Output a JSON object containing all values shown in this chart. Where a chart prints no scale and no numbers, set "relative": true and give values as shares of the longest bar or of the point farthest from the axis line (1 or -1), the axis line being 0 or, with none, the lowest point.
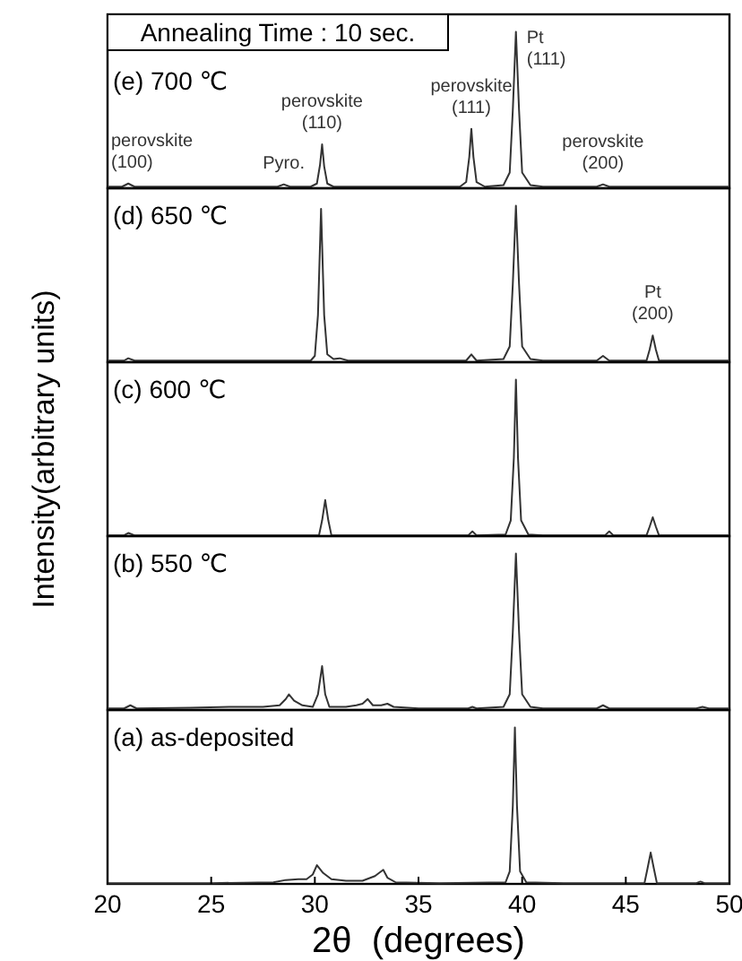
{
  "chart_data": [
    {
      "type": "line",
      "title": "(e) 700 ℃",
      "relative": true,
      "xlim": [
        20,
        50
      ],
      "tick_labels": false,
      "annotations": [
        "Annealing Time : 10 sec.",
        {
          "text": "perovskite\n(100)",
          "x": 21.0,
          "y": 0.03
        },
        {
          "text": "Pyro.",
          "x": 28.5,
          "y": 0.025
        },
        {
          "text": "perovskite\n(110)",
          "x": 30.35,
          "y": 0.28
        },
        {
          "text": "perovskite\n(111)",
          "x": 37.55,
          "y": 0.38
        },
        {
          "text": "Pt\n(111)",
          "x": 39.7,
          "y": 1
        },
        {
          "text": "perovskite\n(200)",
          "x": 43.9,
          "y": 0.025
        }
      ],
      "series": [
        {
          "color": "#333333",
          "x": [
            20,
            20.7,
            21.0,
            21.3,
            23,
            25,
            27,
            28.2,
            28.5,
            28.8,
            29.8,
            30.1,
            30.25,
            30.35,
            30.45,
            30.6,
            30.9,
            33,
            35,
            37.0,
            37.3,
            37.45,
            37.55,
            37.65,
            37.8,
            38.2,
            39.1,
            39.4,
            39.55,
            39.7,
            39.85,
            40.0,
            40.4,
            41,
            43.6,
            43.9,
            44.2,
            46,
            48,
            50
          ],
          "values": [
            0.01,
            0.01,
            0.03,
            0.01,
            0.01,
            0.01,
            0.01,
            0.01,
            0.025,
            0.01,
            0.01,
            0.03,
            0.15,
            0.28,
            0.14,
            0.03,
            0.01,
            0.01,
            0.01,
            0.01,
            0.04,
            0.2,
            0.38,
            0.2,
            0.04,
            0.01,
            0.02,
            0.1,
            0.5,
            1,
            0.5,
            0.1,
            0.02,
            0.01,
            0.01,
            0.025,
            0.01,
            0.01,
            0.01,
            0.01
          ]
        }
      ]
    },
    {
      "type": "line",
      "title": "(d) 650 ℃",
      "relative": true,
      "xlim": [
        20,
        50
      ],
      "tick_labels": false,
      "annotations": [
        {
          "text": "Pt\n(200)",
          "x": 46.3,
          "y": 0.17
        }
      ],
      "series": [
        {
          "color": "#333333",
          "x": [
            20,
            20.8,
            21.0,
            21.3,
            26,
            28.5,
            29.8,
            30.0,
            30.15,
            30.3,
            30.45,
            30.6,
            30.9,
            31.2,
            31.6,
            35,
            37.3,
            37.55,
            37.8,
            39.1,
            39.4,
            39.55,
            39.7,
            39.85,
            40.0,
            40.4,
            41,
            43.6,
            43.9,
            44.2,
            46.0,
            46.15,
            46.3,
            46.45,
            46.6,
            48,
            50
          ],
          "values": [
            0.01,
            0.01,
            0.025,
            0.01,
            0.01,
            0.01,
            0.01,
            0.04,
            0.3,
            0.98,
            0.3,
            0.05,
            0.02,
            0.025,
            0.01,
            0.01,
            0.01,
            0.05,
            0.01,
            0.02,
            0.1,
            0.5,
            1,
            0.5,
            0.1,
            0.02,
            0.01,
            0.01,
            0.04,
            0.01,
            0.01,
            0.08,
            0.17,
            0.08,
            0.01,
            0.01,
            0.01
          ]
        }
      ]
    },
    {
      "type": "line",
      "title": "(c) 600 ℃",
      "relative": true,
      "xlim": [
        20,
        50
      ],
      "tick_labels": false,
      "ylabel": "Intensity(arbitrary units)",
      "series": [
        {
          "color": "#333333",
          "x": [
            20,
            20.8,
            21.0,
            21.3,
            28,
            30.2,
            30.35,
            30.5,
            30.65,
            30.8,
            35,
            37.4,
            37.6,
            37.8,
            39.2,
            39.45,
            39.6,
            39.7,
            39.8,
            39.95,
            40.3,
            41,
            44.0,
            44.2,
            44.4,
            46.0,
            46.15,
            46.3,
            46.45,
            46.6,
            50
          ],
          "values": [
            0.005,
            0.005,
            0.02,
            0.005,
            0.005,
            0.005,
            0.1,
            0.23,
            0.1,
            0.005,
            0.005,
            0.005,
            0.03,
            0.005,
            0.01,
            0.1,
            0.5,
            1,
            0.5,
            0.1,
            0.01,
            0.005,
            0.005,
            0.03,
            0.005,
            0.005,
            0.06,
            0.12,
            0.06,
            0.005,
            0.005
          ]
        }
      ]
    },
    {
      "type": "line",
      "title": "(b) 550 ℃",
      "relative": true,
      "xlim": [
        20,
        50
      ],
      "tick_labels": false,
      "series": [
        {
          "color": "#333333",
          "x": [
            20,
            20.8,
            21.1,
            21.4,
            24,
            26,
            27.5,
            28.3,
            28.6,
            28.75,
            29.0,
            29.4,
            29.9,
            30.15,
            30.35,
            30.5,
            30.7,
            31.5,
            32.0,
            32.3,
            32.55,
            32.8,
            33.2,
            33.5,
            33.8,
            35,
            37.4,
            37.6,
            37.8,
            39.1,
            39.4,
            39.55,
            39.7,
            39.85,
            40.0,
            40.4,
            41,
            43.6,
            43.9,
            44.2,
            48.4,
            48.7,
            49.0,
            50
          ],
          "values": [
            0.01,
            0.01,
            0.03,
            0.01,
            0.015,
            0.02,
            0.02,
            0.03,
            0.07,
            0.1,
            0.06,
            0.03,
            0.02,
            0.1,
            0.28,
            0.1,
            0.02,
            0.02,
            0.03,
            0.04,
            0.07,
            0.03,
            0.03,
            0.04,
            0.02,
            0.01,
            0.01,
            0.02,
            0.01,
            0.02,
            0.1,
            0.5,
            1,
            0.5,
            0.1,
            0.02,
            0.01,
            0.01,
            0.03,
            0.01,
            0.01,
            0.02,
            0.01,
            0.01
          ]
        }
      ]
    },
    {
      "type": "line",
      "title": "(a) as-deposited",
      "relative": true,
      "xlim": [
        20,
        50
      ],
      "xticks": [
        20,
        25,
        30,
        35,
        40,
        45,
        50
      ],
      "tick_labels": "x",
      "xlabel": "2θ  (degrees)",
      "series": [
        {
          "color": "#333333",
          "x": [
            20,
            25,
            28,
            28.6,
            29.2,
            29.6,
            29.9,
            30.1,
            30.4,
            30.8,
            31.5,
            32.3,
            32.9,
            33.3,
            33.5,
            33.9,
            36,
            39.2,
            39.4,
            39.55,
            39.65,
            39.75,
            39.9,
            40.2,
            42,
            45.9,
            46.05,
            46.2,
            46.35,
            46.5,
            48.4,
            48.6,
            48.8,
            50
          ],
          "values": [
            0.005,
            0.005,
            0.01,
            0.025,
            0.03,
            0.03,
            0.06,
            0.12,
            0.07,
            0.03,
            0.02,
            0.02,
            0.05,
            0.09,
            0.04,
            0.01,
            0.005,
            0.01,
            0.08,
            0.5,
            1,
            0.5,
            0.08,
            0.01,
            0.005,
            0.005,
            0.1,
            0.2,
            0.1,
            0.005,
            0.005,
            0.015,
            0.005,
            0.005
          ]
        }
      ]
    }
  ]
}
